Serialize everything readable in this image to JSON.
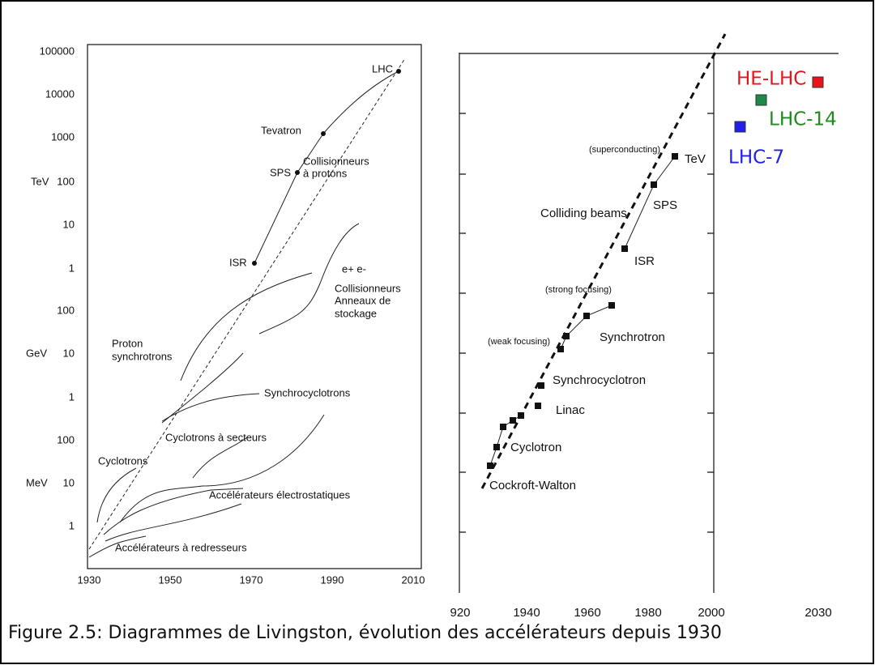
{
  "left_plot": {
    "y_tick_labels": [
      "100000",
      "10000",
      "1000",
      "100",
      "10",
      "1",
      "100",
      "10",
      "1",
      "100",
      "10",
      "1"
    ],
    "unit_labels": [
      "TeV",
      "GeV",
      "MeV"
    ],
    "x_tick_labels": [
      "1930",
      "1950",
      "1970",
      "1990",
      "2010"
    ],
    "annotations": [
      "LHC",
      "Tevatron",
      "Collisionneurs",
      "à protons",
      "SPS",
      "ISR",
      "e+ e-",
      "Collisionneurs",
      "Anneaux de",
      "stockage",
      "Proton",
      "synchrotrons",
      "Synchrocyclotrons",
      "Cyclotrons à secteurs",
      "Cyclotrons",
      "Accélérateurs électrostatiques",
      "Accélérateurs à redresseurs"
    ]
  },
  "right_plot": {
    "x_tick_labels": [
      "920",
      "1940",
      "1960",
      "1980",
      "2000",
      "2030"
    ],
    "annotations": [
      "(superconducting)",
      "TeV",
      "SPS",
      "Colliding beams",
      "ISR",
      "(strong focusing)",
      "(weak focusing)",
      "Synchrotron",
      "Synchrocyclotron",
      "Linac",
      "Cyclotron",
      "Cockroft-Walton"
    ],
    "lhc_labels": [
      "HE-LHC",
      "LHC-14",
      "LHC-7"
    ]
  },
  "caption": "Figure 2.5: Diagrammes de Livingston, évolution des accélérateurs depuis 1930"
}
